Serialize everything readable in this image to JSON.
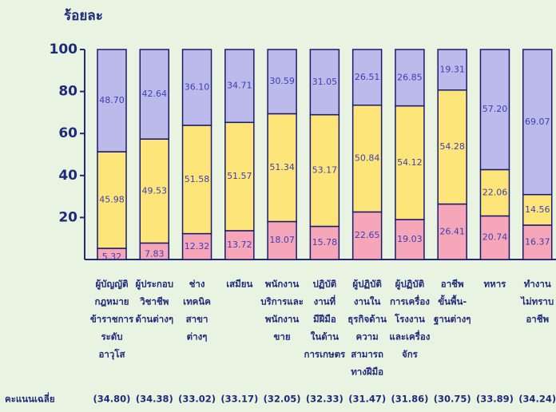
{
  "chart_data": {
    "type": "stacked_bar",
    "y_axis_label": "ร้อยละ",
    "categories": [
      [
        "ผู้บัญญัติ",
        "กฎหมาย",
        "ข้าราชการ",
        "ระดับ",
        "อาวุโส"
      ],
      [
        "ผู้ประกอบ",
        "วิชาชีพ",
        "ด้านต่างๆ"
      ],
      [
        "ช่าง",
        "เทคนิค",
        "สาขา",
        "ต่างๆ"
      ],
      [
        "เสมียน"
      ],
      [
        "พนักงาน",
        "บริการและ",
        "พนักงาน",
        "ขาย"
      ],
      [
        "ปฏิบัติ",
        "งานที่",
        "มีฝีมือ",
        "ในด้าน",
        "การเกษตร"
      ],
      [
        "ผู้ปฏิบัติ",
        "งานใน",
        "ธุรกิจด้าน",
        "ความ",
        "สามารถ",
        "ทางฝีมือ"
      ],
      [
        "ผู้ปฏิบัติ",
        "การเครื่อง",
        "โรงงาน",
        "และเครื่อง",
        "จักร"
      ],
      [
        "อาชีพ",
        "ขั้นพื้น-",
        "ฐานต่างๆ"
      ],
      [
        "ทหาร"
      ],
      [
        "ทำงาน",
        "ไม่ทราบ",
        "อาชีพ"
      ]
    ],
    "series": [
      {
        "color": "#f5a6b8",
        "values": [
          5.32,
          7.83,
          12.32,
          13.72,
          18.07,
          15.78,
          22.65,
          19.03,
          26.41,
          20.74,
          16.37
        ],
        "value_labels": [
          "5.32",
          "7.83",
          "12.32",
          "13.72",
          "18.07",
          "15.78",
          "22.65",
          "19.03",
          "26.41",
          "20.74",
          "16.37"
        ]
      },
      {
        "color": "#fde57a",
        "values": [
          45.98,
          49.53,
          51.58,
          51.57,
          51.34,
          53.17,
          50.84,
          54.12,
          54.28,
          22.06,
          14.56
        ],
        "value_labels": [
          "45.98",
          "49.53",
          "51.58",
          "51.57",
          "51.34",
          "53.17",
          "50.84",
          "54.12",
          "54.28",
          "22.06",
          "14.56"
        ]
      },
      {
        "color": "#bcbaea",
        "values": [
          48.7,
          42.64,
          36.1,
          34.71,
          30.59,
          31.05,
          26.51,
          26.85,
          19.31,
          57.2,
          69.07
        ],
        "value_labels": [
          "48.70",
          "42.64",
          "36.10",
          "34.71",
          "30.59",
          "31.05",
          "26.51",
          "26.85",
          "19.31",
          "57.20",
          "69.07"
        ]
      }
    ],
    "score_title": "คะแนนเฉลี่ย",
    "score_labels": [
      "(34.80)",
      "(34.38)",
      "(33.02)",
      "(33.17)",
      "(32.05)",
      "(32.33)",
      "(31.47)",
      "(31.86)",
      "(30.75)",
      "(33.89)",
      "(34.24)"
    ],
    "ylim": [
      0,
      100
    ],
    "yticks": [
      20,
      40,
      60,
      80,
      100
    ]
  }
}
